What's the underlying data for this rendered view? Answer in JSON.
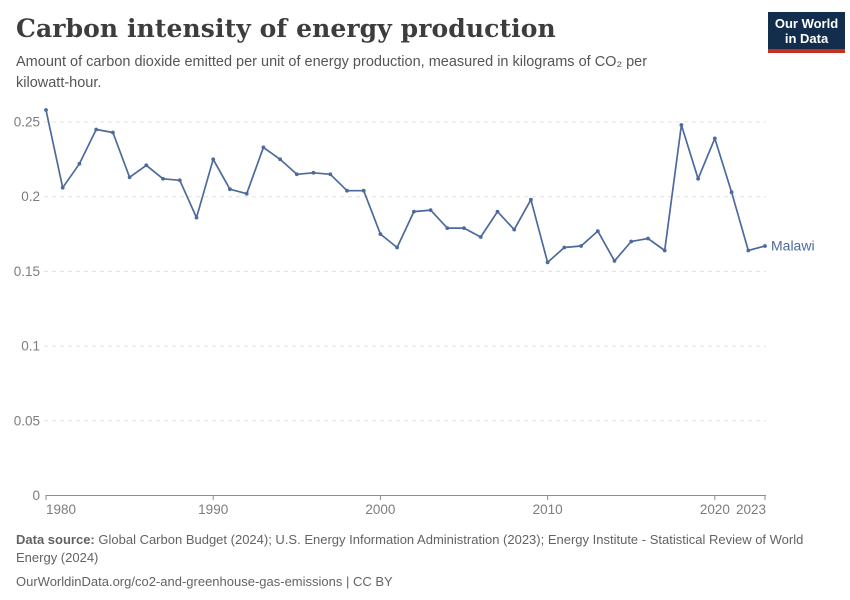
{
  "header": {
    "title": "Carbon intensity of energy production",
    "subtitle": "Amount of carbon dioxide emitted per unit of energy production, measured in kilograms of CO₂ per kilowatt-hour."
  },
  "logo": {
    "line1": "Our World",
    "line2": "in Data",
    "bg_color": "#132e4d",
    "bar_color": "#c4311f"
  },
  "chart_data": {
    "type": "line",
    "title": "Carbon intensity of energy production",
    "xlim": [
      1980,
      2023
    ],
    "ylim": [
      0,
      0.25
    ],
    "grid": true,
    "legend_position": "end-of-line-label",
    "x_ticks": [
      1980,
      1990,
      2000,
      2010,
      2020,
      2023
    ],
    "y_ticks": [
      0,
      0.05,
      0.1,
      0.15,
      0.2,
      0.25
    ],
    "y_tick_labels": [
      "0",
      "0.05",
      "0.1",
      "0.15",
      "0.2",
      "0.25"
    ],
    "end_label": "Malawi",
    "series": [
      {
        "name": "Malawi",
        "color": "#4c6a9c",
        "x": [
          1980,
          1981,
          1982,
          1983,
          1984,
          1985,
          1986,
          1987,
          1988,
          1989,
          1990,
          1991,
          1992,
          1993,
          1994,
          1995,
          1996,
          1997,
          1998,
          1999,
          2000,
          2001,
          2002,
          2003,
          2004,
          2005,
          2006,
          2007,
          2008,
          2009,
          2010,
          2011,
          2012,
          2013,
          2014,
          2015,
          2016,
          2017,
          2018,
          2019,
          2020,
          2021,
          2022,
          2023
        ],
        "values": [
          0.258,
          0.206,
          0.222,
          0.245,
          0.243,
          0.213,
          0.221,
          0.212,
          0.211,
          0.186,
          0.225,
          0.205,
          0.202,
          0.233,
          0.225,
          0.215,
          0.216,
          0.215,
          0.204,
          0.204,
          0.175,
          0.166,
          0.19,
          0.191,
          0.179,
          0.179,
          0.173,
          0.19,
          0.178,
          0.198,
          0.156,
          0.166,
          0.167,
          0.177,
          0.157,
          0.17,
          0.172,
          0.164,
          0.248,
          0.212,
          0.239,
          0.203,
          0.164,
          0.167
        ]
      }
    ]
  },
  "footer": {
    "data_source_label": "Data source:",
    "sources": "Global Carbon Budget (2024); U.S. Energy Information Administration (2023); Energy Institute - Statistical Review of World Energy (2024)",
    "citation": "OurWorldinData.org/co2-and-greenhouse-gas-emissions | CC BY"
  }
}
